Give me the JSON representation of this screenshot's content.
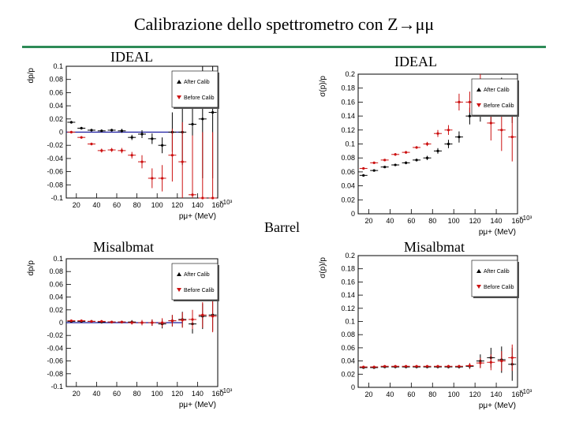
{
  "title": "Calibrazione dello spettrometro con Z→μμ",
  "colors": {
    "rule": "#2e8b57",
    "after": "#000000",
    "before": "#cc1111",
    "ideal_line": "#1a1aa0"
  },
  "labels": {
    "top_left": "IDEAL",
    "top_right": "IDEAL",
    "barrel": "Barrel",
    "bottom_left": "Misalbmat",
    "bottom_right": "Misalbmat"
  },
  "chart_data": [
    {
      "id": "bias-ideal",
      "type": "scatter",
      "ylabel": "dp/p",
      "xlabel": "pμ+ (MeV)",
      "x_exponent": "×10³",
      "xlim": [
        10,
        160
      ],
      "ylim": [
        -0.1,
        0.1
      ],
      "xticks": [
        20,
        40,
        60,
        80,
        100,
        120,
        140,
        160
      ],
      "yticks": [
        -0.1,
        -0.08,
        -0.06,
        -0.04,
        -0.02,
        0,
        0.02,
        0.04,
        0.06,
        0.08,
        0.1
      ],
      "legend": [
        "After Calib",
        "Before Calib"
      ],
      "series": [
        {
          "name": "After Calib",
          "x": [
            15,
            25,
            35,
            45,
            55,
            65,
            75,
            85,
            95,
            105,
            115,
            125,
            135,
            145,
            155
          ],
          "y": [
            0.015,
            0.006,
            0.003,
            0.002,
            0.003,
            0.002,
            -0.008,
            -0.003,
            -0.01,
            -0.02,
            0.0,
            0.0,
            0.012,
            0.02,
            0.03
          ],
          "err": [
            0.002,
            0.002,
            0.002,
            0.002,
            0.002,
            0.003,
            0.004,
            0.006,
            0.008,
            0.012,
            0.03,
            0.05,
            0.07,
            0.09,
            0.1
          ]
        },
        {
          "name": "Before Calib",
          "x": [
            15,
            25,
            35,
            45,
            55,
            65,
            75,
            85,
            95,
            105,
            115,
            125,
            135,
            145,
            155
          ],
          "y": [
            0.0,
            -0.008,
            -0.018,
            -0.028,
            -0.027,
            -0.028,
            -0.035,
            -0.045,
            -0.07,
            -0.07,
            -0.035,
            -0.045,
            -0.095,
            -0.1,
            -0.1
          ],
          "err": [
            0.002,
            0.002,
            0.002,
            0.003,
            0.003,
            0.004,
            0.005,
            0.01,
            0.015,
            0.02,
            0.04,
            0.06,
            0.09,
            0.1,
            0.1
          ]
        }
      ],
      "ideal_line": 0
    },
    {
      "id": "res-ideal",
      "type": "scatter",
      "ylabel": "σ(p)/p",
      "xlabel": "pμ+ (MeV)",
      "x_exponent": "×10³",
      "xlim": [
        10,
        160
      ],
      "ylim": [
        0,
        0.2
      ],
      "xticks": [
        20,
        40,
        60,
        80,
        100,
        120,
        140,
        160
      ],
      "yticks": [
        0,
        0.02,
        0.04,
        0.06,
        0.08,
        0.1,
        0.12,
        0.14,
        0.16,
        0.18,
        0.2
      ],
      "legend": [
        "After Calib",
        "Before Calib"
      ],
      "series": [
        {
          "name": "After Calib",
          "x": [
            15,
            25,
            35,
            45,
            55,
            65,
            75,
            85,
            95,
            105,
            115,
            125,
            135,
            145,
            155
          ],
          "y": [
            0.055,
            0.062,
            0.067,
            0.07,
            0.073,
            0.077,
            0.08,
            0.09,
            0.1,
            0.11,
            0.14,
            0.15,
            0.15,
            0.17,
            0.16
          ],
          "err": [
            0.001,
            0.001,
            0.001,
            0.001,
            0.002,
            0.002,
            0.003,
            0.004,
            0.006,
            0.008,
            0.012,
            0.018,
            0.02,
            0.025,
            0.03
          ]
        },
        {
          "name": "Before Calib",
          "x": [
            15,
            25,
            35,
            45,
            55,
            65,
            75,
            85,
            95,
            105,
            115,
            125,
            135,
            145,
            155
          ],
          "y": [
            0.065,
            0.073,
            0.077,
            0.085,
            0.088,
            0.095,
            0.1,
            0.115,
            0.12,
            0.16,
            0.16,
            0.19,
            0.13,
            0.12,
            0.11
          ],
          "err": [
            0.001,
            0.001,
            0.001,
            0.002,
            0.002,
            0.002,
            0.003,
            0.005,
            0.007,
            0.012,
            0.015,
            0.02,
            0.025,
            0.03,
            0.035
          ]
        }
      ]
    },
    {
      "id": "bias-misal",
      "type": "scatter",
      "ylabel": "dp/p",
      "xlabel": "pμ+ (MeV)",
      "x_exponent": "×10³",
      "xlim": [
        10,
        160
      ],
      "ylim": [
        -0.1,
        0.1
      ],
      "xticks": [
        20,
        40,
        60,
        80,
        100,
        120,
        140,
        160
      ],
      "yticks": [
        -0.1,
        -0.08,
        -0.06,
        -0.04,
        -0.02,
        0,
        0.02,
        0.04,
        0.06,
        0.08,
        0.1
      ],
      "legend": [
        "After Calib",
        "Before Calib"
      ],
      "series": [
        {
          "name": "After Calib",
          "x": [
            15,
            25,
            35,
            45,
            55,
            65,
            75,
            85,
            95,
            105,
            115,
            125,
            135,
            145,
            155
          ],
          "y": [
            0.002,
            0.002,
            0.002,
            0.001,
            0.001,
            0.001,
            0.001,
            0.0,
            0.0,
            -0.002,
            0.003,
            0.005,
            -0.002,
            0.01,
            0.012
          ],
          "err": [
            0.002,
            0.002,
            0.002,
            0.002,
            0.002,
            0.002,
            0.003,
            0.004,
            0.005,
            0.007,
            0.009,
            0.012,
            0.015,
            0.02,
            0.025
          ]
        },
        {
          "name": "Before Calib",
          "x": [
            15,
            25,
            35,
            45,
            55,
            65,
            75,
            85,
            95,
            105,
            115,
            125,
            135,
            145,
            155
          ],
          "y": [
            0.003,
            0.003,
            0.002,
            0.002,
            0.001,
            0.001,
            0.0,
            0.0,
            0.0,
            0.0,
            0.003,
            0.004,
            0.005,
            0.012,
            0.01
          ],
          "err": [
            0.002,
            0.002,
            0.002,
            0.002,
            0.002,
            0.002,
            0.003,
            0.004,
            0.005,
            0.007,
            0.009,
            0.012,
            0.015,
            0.02,
            0.025
          ]
        }
      ],
      "ideal_line": 0
    },
    {
      "id": "res-misal",
      "type": "scatter",
      "ylabel": "σ(p)/p",
      "xlabel": "pμ+ (MeV)",
      "x_exponent": "×10³",
      "xlim": [
        10,
        160
      ],
      "ylim": [
        0,
        0.2
      ],
      "xticks": [
        20,
        40,
        60,
        80,
        100,
        120,
        140,
        160
      ],
      "yticks": [
        0,
        0.02,
        0.04,
        0.06,
        0.08,
        0.1,
        0.12,
        0.14,
        0.16,
        0.18,
        0.2
      ],
      "legend": [
        "After Calib",
        "Before Calib"
      ],
      "series": [
        {
          "name": "After Calib",
          "x": [
            15,
            25,
            35,
            45,
            55,
            65,
            75,
            85,
            95,
            105,
            115,
            125,
            135,
            145,
            155
          ],
          "y": [
            0.03,
            0.03,
            0.031,
            0.031,
            0.031,
            0.031,
            0.031,
            0.031,
            0.031,
            0.031,
            0.032,
            0.04,
            0.045,
            0.042,
            0.035
          ],
          "err": [
            0.001,
            0.001,
            0.001,
            0.001,
            0.001,
            0.001,
            0.001,
            0.001,
            0.002,
            0.002,
            0.004,
            0.01,
            0.015,
            0.02,
            0.025
          ]
        },
        {
          "name": "Before Calib",
          "x": [
            15,
            25,
            35,
            45,
            55,
            65,
            75,
            85,
            95,
            105,
            115,
            125,
            135,
            145,
            155
          ],
          "y": [
            0.031,
            0.031,
            0.032,
            0.032,
            0.032,
            0.032,
            0.032,
            0.032,
            0.032,
            0.032,
            0.033,
            0.037,
            0.038,
            0.04,
            0.045
          ],
          "err": [
            0.001,
            0.001,
            0.001,
            0.001,
            0.001,
            0.001,
            0.001,
            0.001,
            0.002,
            0.002,
            0.004,
            0.008,
            0.012,
            0.015,
            0.02
          ]
        }
      ]
    }
  ]
}
